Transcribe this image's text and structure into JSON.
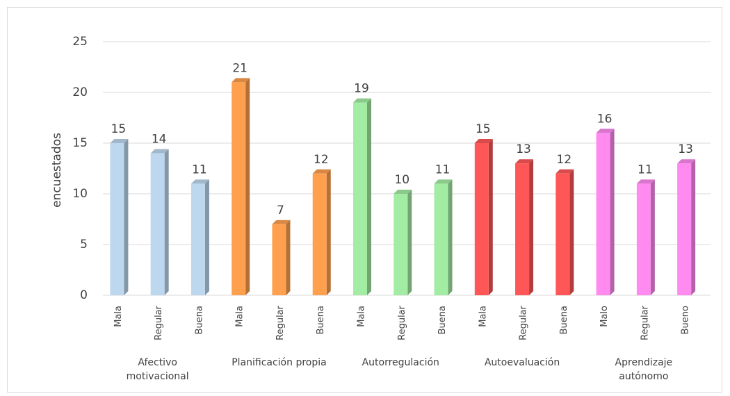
{
  "chart_data": {
    "type": "bar",
    "y_label": "encuestados",
    "ylim": [
      0,
      25
    ],
    "yticks": [
      0,
      5,
      10,
      15,
      20,
      25
    ],
    "grid": true,
    "groups": [
      {
        "name": "Afectivo\nmotivacional",
        "color": "#bdd7ee",
        "categories": [
          "Mala",
          "Regular",
          "Buena"
        ],
        "values": [
          15,
          14,
          11
        ]
      },
      {
        "name": "Planificación propia",
        "color": "#ffa04f",
        "categories": [
          "Mala",
          "Regular",
          "Buena"
        ],
        "values": [
          21,
          7,
          12
        ]
      },
      {
        "name": "Autorregulación",
        "color": "#a3eca3",
        "categories": [
          "Mala",
          "Regular",
          "Buena"
        ],
        "values": [
          19,
          10,
          11
        ]
      },
      {
        "name": "Autoevaluación",
        "color": "#ff5757",
        "categories": [
          "Mala",
          "Regular",
          "Buena"
        ],
        "values": [
          15,
          13,
          12
        ]
      },
      {
        "name": "Aprendizaje\nautónomo",
        "color": "#ff8af0",
        "categories": [
          "Malo",
          "Regular",
          "Bueno"
        ],
        "values": [
          16,
          11,
          13
        ]
      }
    ]
  }
}
